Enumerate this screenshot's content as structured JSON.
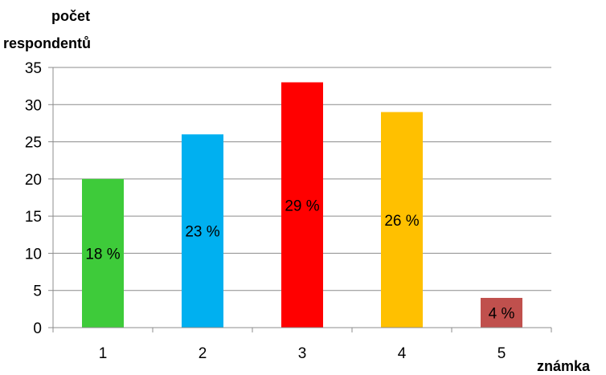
{
  "chart_data": {
    "type": "bar",
    "ylabel_line1": "počet",
    "ylabel_line2": "respondentů",
    "xlabel": "známka",
    "categories": [
      "1",
      "2",
      "3",
      "4",
      "5"
    ],
    "values": [
      20,
      26,
      33,
      29,
      4
    ],
    "data_labels": [
      "18 %",
      "23 %",
      "29 %",
      "26 %",
      "4 %"
    ],
    "colors": [
      "#3ecb3a",
      "#00b0f0",
      "#ff0000",
      "#ffc000",
      "#c0504d"
    ],
    "ylim": [
      0,
      35
    ],
    "yticks": [
      "0",
      "5",
      "10",
      "15",
      "20",
      "25",
      "30",
      "35"
    ],
    "grid": true,
    "legend": "none"
  }
}
